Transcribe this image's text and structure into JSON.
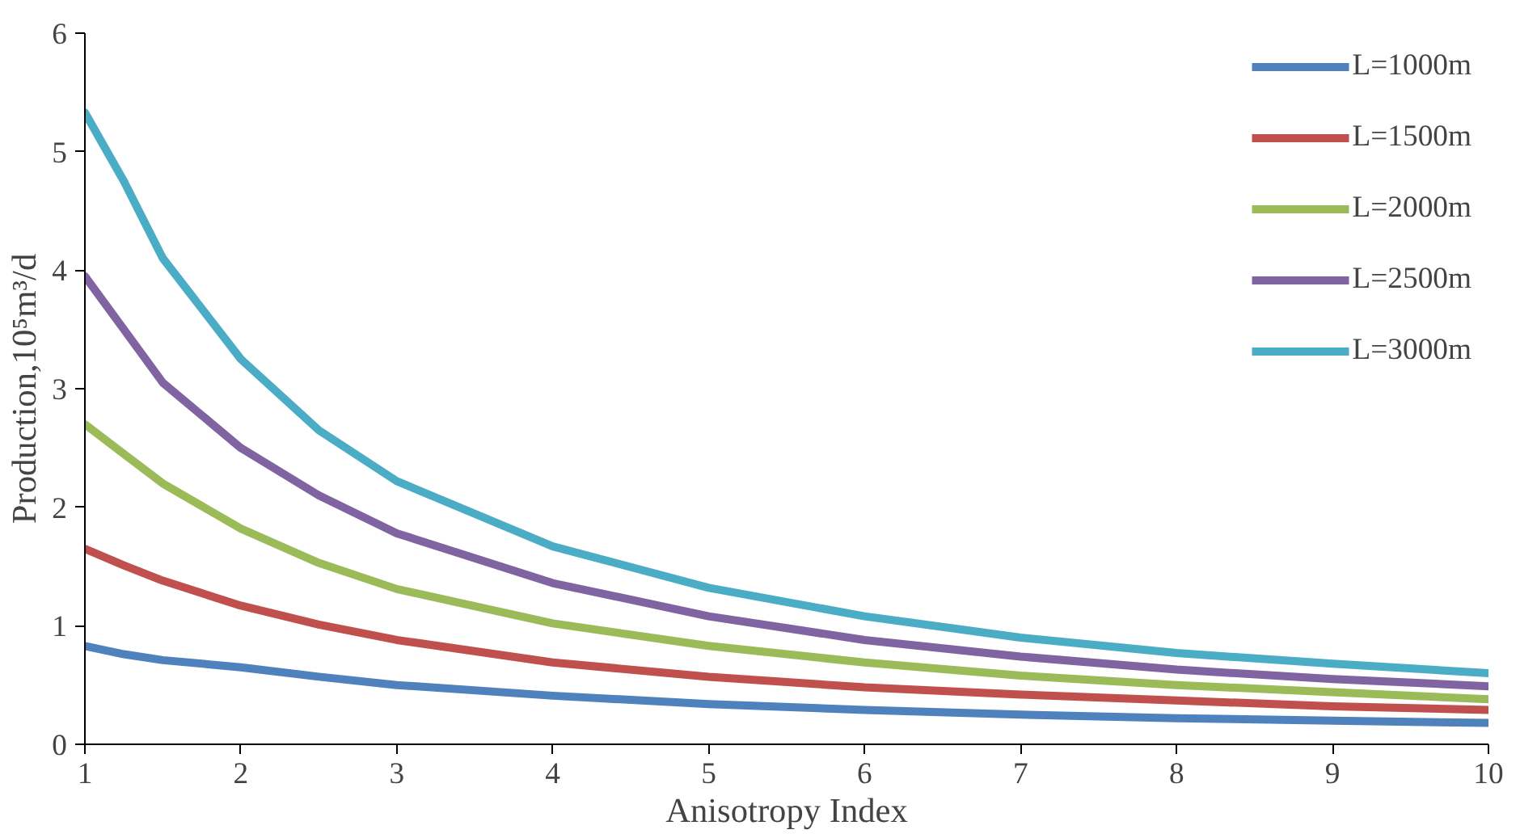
{
  "chart_data": {
    "type": "line",
    "xlabel": "Anisotropy Index",
    "ylabel": "Production,10⁵m³/d",
    "x": [
      1,
      1.25,
      1.5,
      2,
      2.5,
      3,
      4,
      5,
      6,
      7,
      8,
      9,
      10
    ],
    "series": [
      {
        "name": "L=1000m",
        "color": "#4f81bd",
        "values": [
          0.83,
          0.76,
          0.71,
          0.65,
          0.57,
          0.5,
          0.41,
          0.34,
          0.29,
          0.25,
          0.22,
          0.2,
          0.18
        ]
      },
      {
        "name": "L=1500m",
        "color": "#c0504d",
        "values": [
          1.65,
          1.51,
          1.38,
          1.17,
          1.01,
          0.88,
          0.69,
          0.57,
          0.48,
          0.42,
          0.37,
          0.32,
          0.29
        ]
      },
      {
        "name": "L=2000m",
        "color": "#9bbb59",
        "values": [
          2.7,
          2.45,
          2.2,
          1.82,
          1.53,
          1.31,
          1.02,
          0.83,
          0.69,
          0.58,
          0.5,
          0.44,
          0.38
        ]
      },
      {
        "name": "L=2500m",
        "color": "#8064a2",
        "values": [
          3.95,
          3.5,
          3.05,
          2.5,
          2.1,
          1.78,
          1.36,
          1.08,
          0.88,
          0.74,
          0.63,
          0.55,
          0.49
        ]
      },
      {
        "name": "L=3000m",
        "color": "#4bacc6",
        "values": [
          5.33,
          4.75,
          4.1,
          3.25,
          2.65,
          2.22,
          1.67,
          1.32,
          1.08,
          0.9,
          0.77,
          0.68,
          0.6
        ]
      }
    ],
    "xlim": [
      1,
      10
    ],
    "xticks": [
      1,
      2,
      3,
      4,
      5,
      6,
      7,
      8,
      9,
      10
    ],
    "ylim": [
      0,
      6
    ],
    "yticks": [
      0,
      1,
      2,
      3,
      4,
      5,
      6
    ],
    "grid": false,
    "legend": "top right",
    "marker": "none",
    "line_style": "solid"
  }
}
